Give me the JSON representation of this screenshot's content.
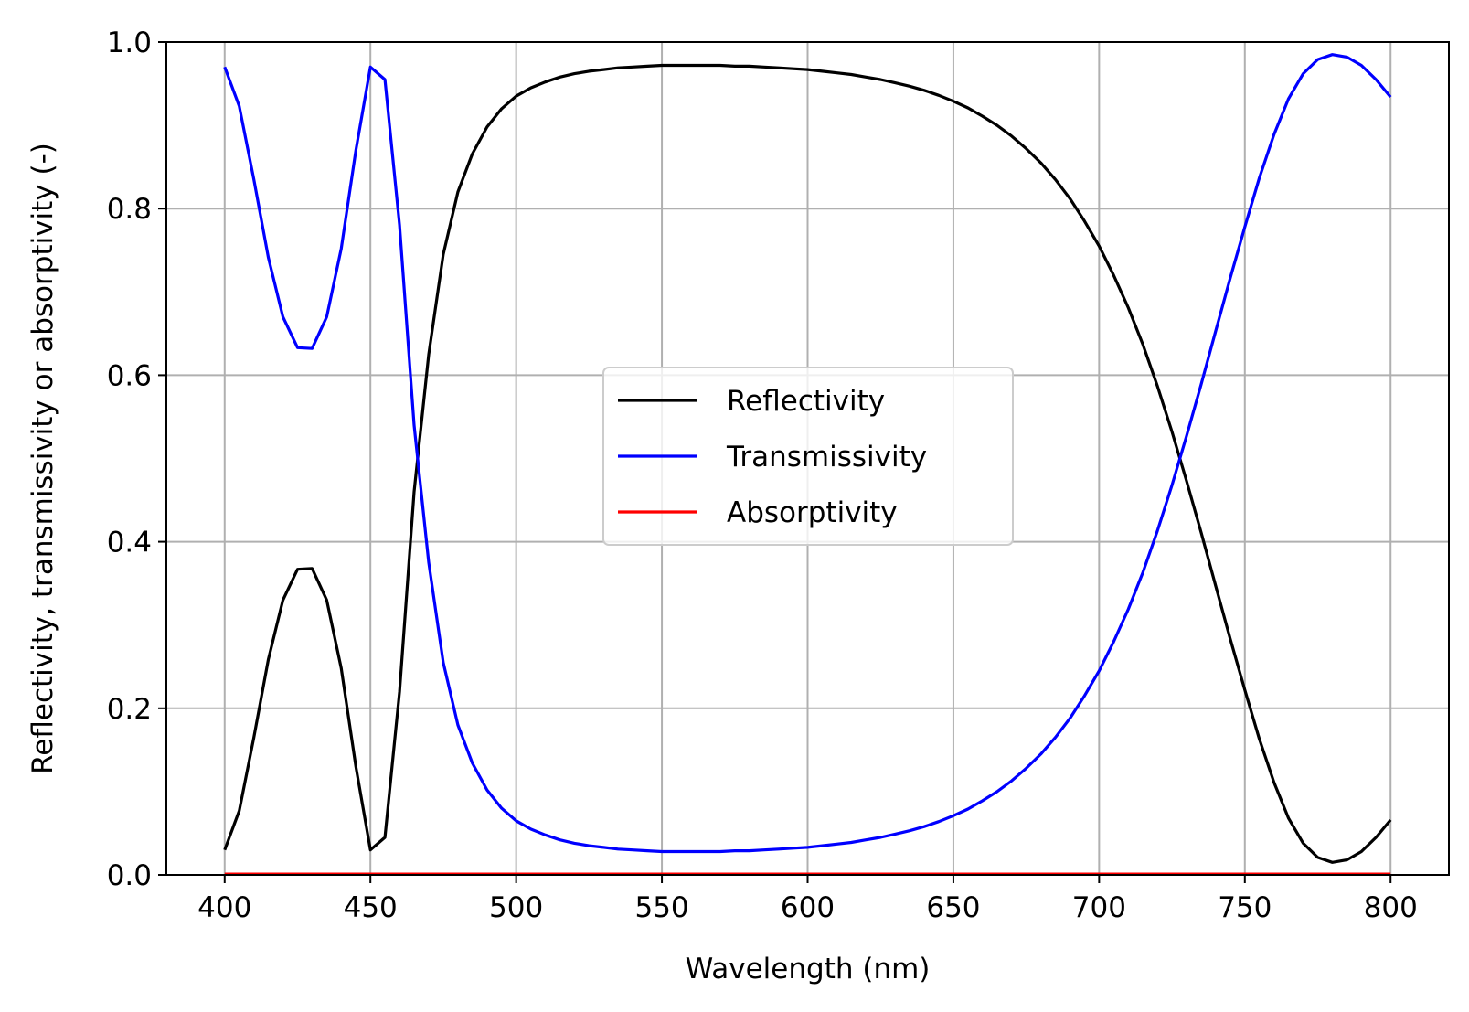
{
  "chart_data": {
    "type": "line",
    "xlabel": "Wavelength (nm)",
    "ylabel": "Reflectivity, transmissivity or absorptivity (-)",
    "xlim": [
      380,
      820
    ],
    "ylim": [
      0,
      1
    ],
    "xticks": [
      400,
      450,
      500,
      550,
      600,
      650,
      700,
      750,
      800
    ],
    "yticks": [
      0.0,
      0.2,
      0.4,
      0.6,
      0.8,
      1.0
    ],
    "xtick_labels": [
      "400",
      "450",
      "500",
      "550",
      "600",
      "650",
      "700",
      "750",
      "800"
    ],
    "ytick_labels": [
      "0.0",
      "0.2",
      "0.4",
      "0.6",
      "0.8",
      "1.0"
    ],
    "grid": true,
    "legend_position": "center",
    "x": [
      400,
      405,
      410,
      415,
      420,
      425,
      430,
      435,
      440,
      445,
      450,
      455,
      460,
      465,
      470,
      475,
      480,
      485,
      490,
      495,
      500,
      505,
      510,
      515,
      520,
      525,
      530,
      535,
      540,
      545,
      550,
      555,
      560,
      565,
      570,
      575,
      580,
      585,
      590,
      595,
      600,
      605,
      610,
      615,
      620,
      625,
      630,
      635,
      640,
      645,
      650,
      655,
      660,
      665,
      670,
      675,
      680,
      685,
      690,
      695,
      700,
      705,
      710,
      715,
      720,
      725,
      730,
      735,
      740,
      745,
      750,
      755,
      760,
      765,
      770,
      775,
      780,
      785,
      790,
      795,
      800
    ],
    "series": [
      {
        "name": "Reflectivity",
        "color": "#000000",
        "values": [
          0.03,
          0.077,
          0.165,
          0.259,
          0.33,
          0.367,
          0.368,
          0.33,
          0.248,
          0.13,
          0.03,
          0.045,
          0.22,
          0.46,
          0.625,
          0.745,
          0.82,
          0.866,
          0.898,
          0.92,
          0.935,
          0.945,
          0.952,
          0.958,
          0.962,
          0.965,
          0.967,
          0.969,
          0.97,
          0.971,
          0.972,
          0.972,
          0.972,
          0.972,
          0.972,
          0.971,
          0.971,
          0.97,
          0.969,
          0.968,
          0.967,
          0.965,
          0.963,
          0.961,
          0.958,
          0.955,
          0.951,
          0.947,
          0.942,
          0.936,
          0.929,
          0.921,
          0.911,
          0.9,
          0.887,
          0.872,
          0.855,
          0.835,
          0.812,
          0.785,
          0.755,
          0.72,
          0.681,
          0.637,
          0.587,
          0.532,
          0.473,
          0.411,
          0.347,
          0.283,
          0.222,
          0.163,
          0.111,
          0.068,
          0.038,
          0.021,
          0.015,
          0.018,
          0.028,
          0.045,
          0.066
        ]
      },
      {
        "name": "Transmissivity",
        "color": "#0000ff",
        "values": [
          0.97,
          0.923,
          0.835,
          0.741,
          0.67,
          0.633,
          0.632,
          0.67,
          0.752,
          0.87,
          0.97,
          0.955,
          0.78,
          0.54,
          0.375,
          0.255,
          0.18,
          0.134,
          0.102,
          0.08,
          0.065,
          0.055,
          0.048,
          0.042,
          0.038,
          0.035,
          0.033,
          0.031,
          0.03,
          0.029,
          0.028,
          0.028,
          0.028,
          0.028,
          0.028,
          0.029,
          0.029,
          0.03,
          0.031,
          0.032,
          0.033,
          0.035,
          0.037,
          0.039,
          0.042,
          0.045,
          0.049,
          0.053,
          0.058,
          0.064,
          0.071,
          0.079,
          0.089,
          0.1,
          0.113,
          0.128,
          0.145,
          0.165,
          0.188,
          0.215,
          0.245,
          0.28,
          0.319,
          0.363,
          0.413,
          0.468,
          0.527,
          0.589,
          0.653,
          0.717,
          0.778,
          0.837,
          0.889,
          0.932,
          0.962,
          0.979,
          0.985,
          0.982,
          0.972,
          0.955,
          0.934
        ]
      },
      {
        "name": "Absorptivity",
        "color": "#ff0000",
        "values": [
          0.001,
          0.001,
          0.001,
          0.001,
          0.001,
          0.001,
          0.001,
          0.001,
          0.001,
          0.001,
          0.001,
          0.001,
          0.001,
          0.001,
          0.001,
          0.001,
          0.001,
          0.001,
          0.001,
          0.001,
          0.001,
          0.001,
          0.001,
          0.001,
          0.001,
          0.001,
          0.001,
          0.001,
          0.001,
          0.001,
          0.001,
          0.001,
          0.001,
          0.001,
          0.001,
          0.001,
          0.001,
          0.001,
          0.001,
          0.001,
          0.001,
          0.001,
          0.001,
          0.001,
          0.001,
          0.001,
          0.001,
          0.001,
          0.001,
          0.001,
          0.001,
          0.001,
          0.001,
          0.001,
          0.001,
          0.001,
          0.001,
          0.001,
          0.001,
          0.001,
          0.001,
          0.001,
          0.001,
          0.001,
          0.001,
          0.001,
          0.001,
          0.001,
          0.001,
          0.001,
          0.001,
          0.001,
          0.001,
          0.001,
          0.001,
          0.001,
          0.001,
          0.001,
          0.001,
          0.001,
          0.001
        ]
      }
    ]
  }
}
